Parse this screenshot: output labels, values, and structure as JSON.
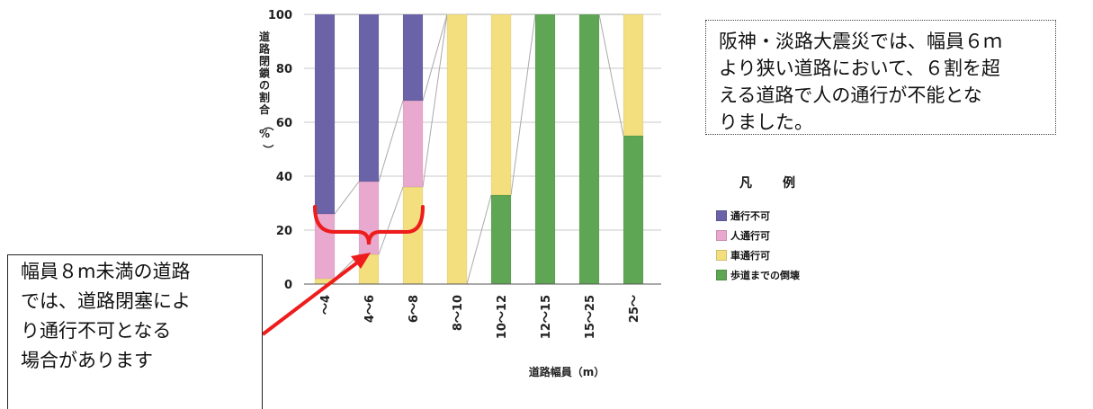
{
  "chart_data": {
    "type": "bar",
    "stacked": true,
    "categories": [
      "～4",
      "4～6",
      "6～8",
      "8～10",
      "10～12",
      "12～15",
      "15～25",
      "25～"
    ],
    "series": [
      {
        "name": "歩道までの倒壊",
        "color": "#5ea653",
        "values": [
          0,
          0,
          0,
          0,
          33,
          100,
          100,
          55
        ]
      },
      {
        "name": "車通行可",
        "color": "#f3df7d",
        "values": [
          2,
          11,
          36,
          100,
          67,
          0,
          0,
          45
        ]
      },
      {
        "name": "人通行可",
        "color": "#e9a9cf",
        "values": [
          24,
          27,
          32,
          0,
          0,
          0,
          0,
          0
        ]
      },
      {
        "name": "通行不可",
        "color": "#6b63a8",
        "values": [
          74,
          62,
          32,
          0,
          0,
          0,
          0,
          0
        ]
      }
    ],
    "ylim": [
      0,
      100
    ],
    "yticks": [
      0,
      20,
      40,
      60,
      80,
      100
    ],
    "ylabel": "道路閉鎖の割合（%）",
    "xlabel": "道路幅員（m）",
    "grid": true
  },
  "legend": {
    "title": "凡　例",
    "items": [
      {
        "label": "通行不可",
        "color": "#6b63a8"
      },
      {
        "label": "人通行可",
        "color": "#e9a9cf"
      },
      {
        "label": "車通行可",
        "color": "#f3df7d"
      },
      {
        "label": "歩道までの倒壊",
        "color": "#5ea653"
      }
    ]
  },
  "note": {
    "lines": [
      "阪神・淡路大震災では、幅員６ｍ",
      "より狭い道路において、６割を超",
      "える道路で人の通行が不能とな",
      "りました。"
    ]
  },
  "callout": {
    "lines": [
      "幅員８m未満の道路",
      "では、道路閉塞によ",
      "り通行不可となる",
      "場合があります"
    ],
    "arrow_color": "#ee1c1c",
    "brace_color": "#ee1c1c"
  }
}
